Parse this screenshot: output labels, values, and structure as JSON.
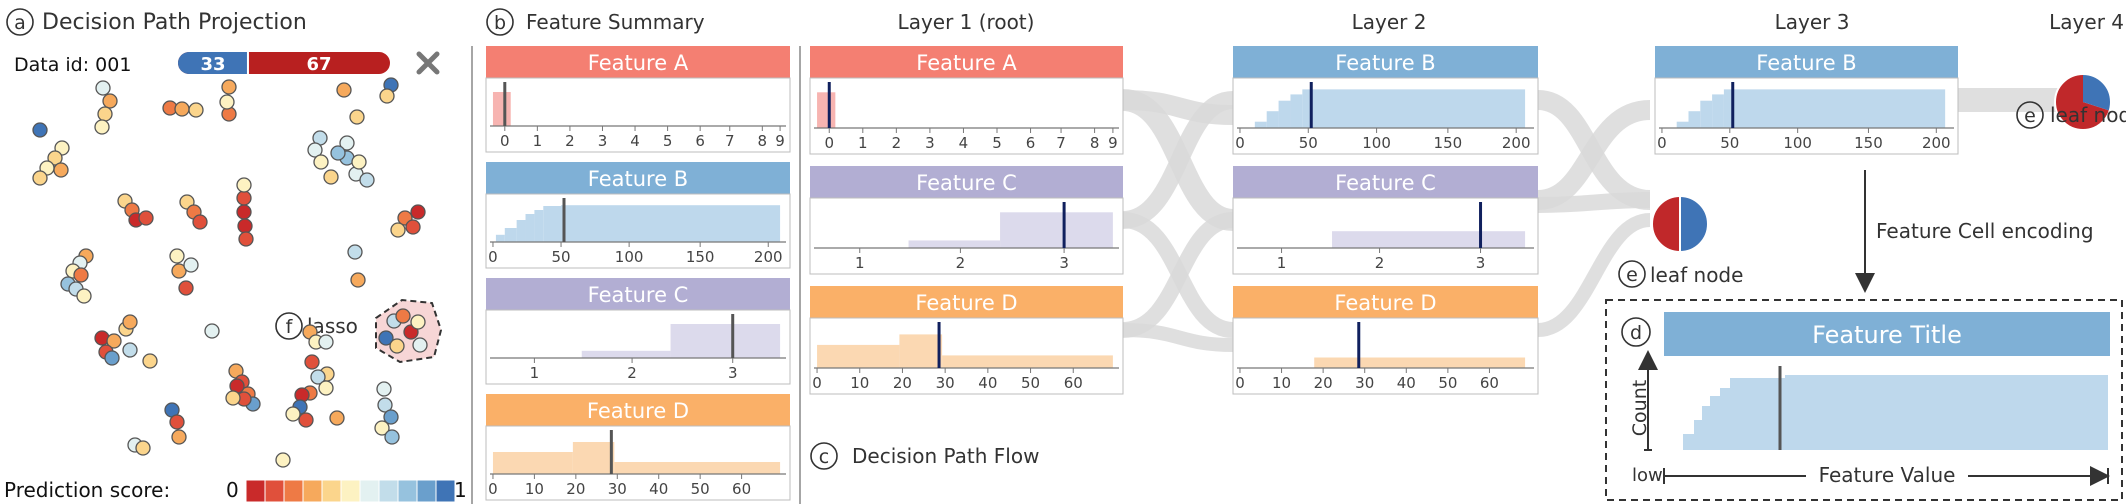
{
  "projection": {
    "marker": "a",
    "title": "Decision Path Projection",
    "data_id_label": "Data id: 001",
    "score_left": "33",
    "score_right": "67",
    "score_fraction": 0.33,
    "close_icon": "close-icon",
    "lasso_marker": "f",
    "lasso_label": "lasso",
    "prediction_label": "Prediction score:",
    "scale_min": "0",
    "scale_max": "1",
    "scale_colors": [
      "#c92a2a",
      "#e0503b",
      "#ee7a45",
      "#f6a95c",
      "#fbd58c",
      "#fdf2c2",
      "#e3f1f1",
      "#c2ddea",
      "#96c2de",
      "#6a9fcc",
      "#3f74b6"
    ]
  },
  "summary": {
    "marker": "b",
    "title": "Feature Summary"
  },
  "flow": {
    "marker": "c",
    "title": "Decision Path Flow",
    "layers": [
      "Layer 1 (root)",
      "Layer 2",
      "Layer 3",
      "Layer 4"
    ]
  },
  "features": {
    "A": {
      "title": "Feature A",
      "color": "#f47f72",
      "fill": "#f7b4b1",
      "ticks": [
        "0",
        "1",
        "2",
        "3",
        "4",
        "5",
        "6",
        "7",
        "8",
        "9"
      ]
    },
    "B": {
      "title": "Feature B",
      "color": "#7fb0d6",
      "fill": "#bed8ec",
      "ticks": [
        "0",
        "50",
        "100",
        "150",
        "200"
      ]
    },
    "C": {
      "title": "Feature C",
      "color": "#b2aed3",
      "fill": "#dcdaec",
      "ticks": [
        "1",
        "2",
        "3"
      ]
    },
    "D": {
      "title": "Feature D",
      "color": "#fab068",
      "fill": "#fbd8b2",
      "ticks": [
        "0",
        "10",
        "20",
        "30",
        "40",
        "50",
        "60"
      ]
    }
  },
  "leaf": {
    "marker": "e",
    "label": "leaf node"
  },
  "encoding": {
    "arrow_label": "Feature Cell encoding",
    "marker": "d",
    "title": "Feature Title",
    "y_label": "Count",
    "low_label": "low",
    "x_label": "Feature Value"
  }
}
